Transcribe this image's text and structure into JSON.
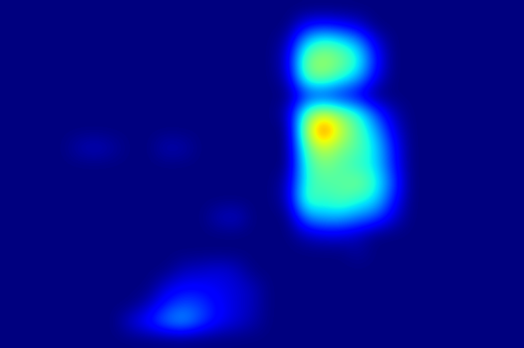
{
  "chart_data": {
    "type": "heatmap",
    "color": "jet",
    "tick_labels": false,
    "zlim": [
      0,
      1
    ],
    "cells": [
      [
        0,
        0,
        0,
        0,
        0,
        0,
        0,
        0,
        0,
        0,
        0,
        0,
        0,
        0,
        0,
        0,
        0,
        0,
        0,
        0,
        0,
        0,
        0,
        0,
        0,
        0,
        0,
        0,
        0,
        0
      ],
      [
        0,
        0,
        0,
        0,
        0,
        0,
        0,
        0,
        0,
        0,
        0,
        0,
        0,
        0,
        0,
        0,
        0,
        0.12,
        0.15,
        0.12,
        0.08,
        0,
        0,
        0,
        0,
        0,
        0,
        0,
        0,
        0
      ],
      [
        0,
        0,
        0,
        0,
        0,
        0,
        0,
        0,
        0,
        0,
        0,
        0,
        0,
        0,
        0,
        0,
        0.05,
        0.35,
        0.45,
        0.4,
        0.3,
        0.1,
        0,
        0,
        0,
        0,
        0,
        0,
        0,
        0
      ],
      [
        0,
        0,
        0,
        0,
        0,
        0,
        0,
        0,
        0,
        0,
        0,
        0,
        0,
        0,
        0,
        0,
        0.08,
        0.5,
        0.55,
        0.5,
        0.4,
        0.15,
        0,
        0,
        0,
        0,
        0,
        0,
        0,
        0
      ],
      [
        0,
        0,
        0,
        0,
        0,
        0,
        0,
        0,
        0,
        0,
        0,
        0,
        0,
        0,
        0,
        0,
        0.05,
        0.45,
        0.5,
        0.4,
        0.3,
        0.1,
        0,
        0,
        0,
        0,
        0,
        0,
        0,
        0
      ],
      [
        0,
        0,
        0,
        0,
        0,
        0,
        0,
        0,
        0,
        0,
        0,
        0,
        0,
        0,
        0,
        0,
        0,
        0.15,
        0.15,
        0.12,
        0.08,
        0,
        0,
        0,
        0,
        0,
        0,
        0,
        0,
        0
      ],
      [
        0,
        0,
        0,
        0,
        0,
        0,
        0,
        0,
        0,
        0,
        0,
        0,
        0,
        0,
        0,
        0,
        0.05,
        0.45,
        0.6,
        0.5,
        0.4,
        0.2,
        0.05,
        0,
        0,
        0,
        0,
        0,
        0,
        0
      ],
      [
        0,
        0,
        0,
        0,
        0,
        0,
        0,
        0,
        0,
        0,
        0,
        0,
        0,
        0,
        0,
        0,
        0,
        0.55,
        0.85,
        0.6,
        0.45,
        0.3,
        0.1,
        0,
        0,
        0,
        0,
        0,
        0,
        0
      ],
      [
        0,
        0,
        0,
        0,
        0.04,
        0.06,
        0.03,
        0,
        0,
        0.05,
        0.04,
        0,
        0,
        0,
        0,
        0,
        0,
        0.45,
        0.6,
        0.5,
        0.45,
        0.35,
        0.15,
        0,
        0,
        0,
        0,
        0,
        0,
        0
      ],
      [
        0,
        0,
        0,
        0,
        0,
        0,
        0,
        0,
        0,
        0,
        0,
        0,
        0,
        0,
        0,
        0,
        0,
        0.4,
        0.5,
        0.45,
        0.4,
        0.35,
        0.15,
        0,
        0,
        0,
        0,
        0,
        0,
        0
      ],
      [
        0,
        0,
        0,
        0,
        0,
        0,
        0,
        0,
        0,
        0,
        0,
        0,
        0,
        0,
        0,
        0,
        0.05,
        0.4,
        0.45,
        0.45,
        0.5,
        0.4,
        0.2,
        0,
        0,
        0,
        0,
        0,
        0,
        0
      ],
      [
        0,
        0,
        0,
        0,
        0,
        0,
        0,
        0,
        0,
        0,
        0,
        0,
        0,
        0,
        0,
        0,
        0.05,
        0.45,
        0.4,
        0.45,
        0.4,
        0.35,
        0.15,
        0,
        0,
        0,
        0,
        0,
        0,
        0
      ],
      [
        0,
        0,
        0,
        0,
        0,
        0,
        0,
        0,
        0,
        0,
        0,
        0,
        0.05,
        0.07,
        0,
        0,
        0,
        0.25,
        0.3,
        0.3,
        0.25,
        0.2,
        0.08,
        0,
        0,
        0,
        0,
        0,
        0,
        0
      ],
      [
        0,
        0,
        0,
        0,
        0,
        0,
        0,
        0,
        0,
        0,
        0,
        0,
        0,
        0,
        0,
        0,
        0,
        0.05,
        0.08,
        0.08,
        0.05,
        0,
        0,
        0,
        0,
        0,
        0,
        0,
        0,
        0
      ],
      [
        0,
        0,
        0,
        0,
        0,
        0,
        0,
        0,
        0,
        0,
        0,
        0,
        0,
        0,
        0,
        0,
        0,
        0,
        0,
        0,
        0.03,
        0,
        0,
        0,
        0,
        0,
        0,
        0,
        0,
        0
      ],
      [
        0,
        0,
        0,
        0,
        0,
        0,
        0,
        0,
        0,
        0,
        0.05,
        0.06,
        0.08,
        0.06,
        0,
        0,
        0,
        0,
        0,
        0,
        0,
        0,
        0,
        0,
        0,
        0,
        0,
        0,
        0,
        0
      ],
      [
        0,
        0,
        0,
        0,
        0,
        0,
        0,
        0,
        0,
        0.08,
        0.12,
        0.12,
        0.1,
        0.08,
        0.05,
        0,
        0,
        0,
        0,
        0,
        0,
        0,
        0,
        0,
        0,
        0,
        0,
        0,
        0,
        0
      ],
      [
        0,
        0,
        0,
        0,
        0,
        0,
        0,
        0,
        0.05,
        0.15,
        0.2,
        0.18,
        0.12,
        0.08,
        0.05,
        0,
        0,
        0,
        0,
        0,
        0,
        0,
        0,
        0,
        0,
        0,
        0,
        0,
        0,
        0
      ],
      [
        0,
        0,
        0,
        0,
        0,
        0,
        0,
        0.08,
        0.15,
        0.25,
        0.3,
        0.2,
        0.12,
        0.08,
        0.04,
        0,
        0,
        0,
        0,
        0,
        0,
        0,
        0,
        0,
        0,
        0,
        0,
        0,
        0,
        0
      ],
      [
        0,
        0,
        0,
        0,
        0,
        0,
        0,
        0,
        0,
        0,
        0,
        0,
        0,
        0,
        0,
        0,
        0,
        0,
        0,
        0,
        0,
        0,
        0,
        0,
        0,
        0,
        0,
        0,
        0,
        0
      ]
    ]
  }
}
